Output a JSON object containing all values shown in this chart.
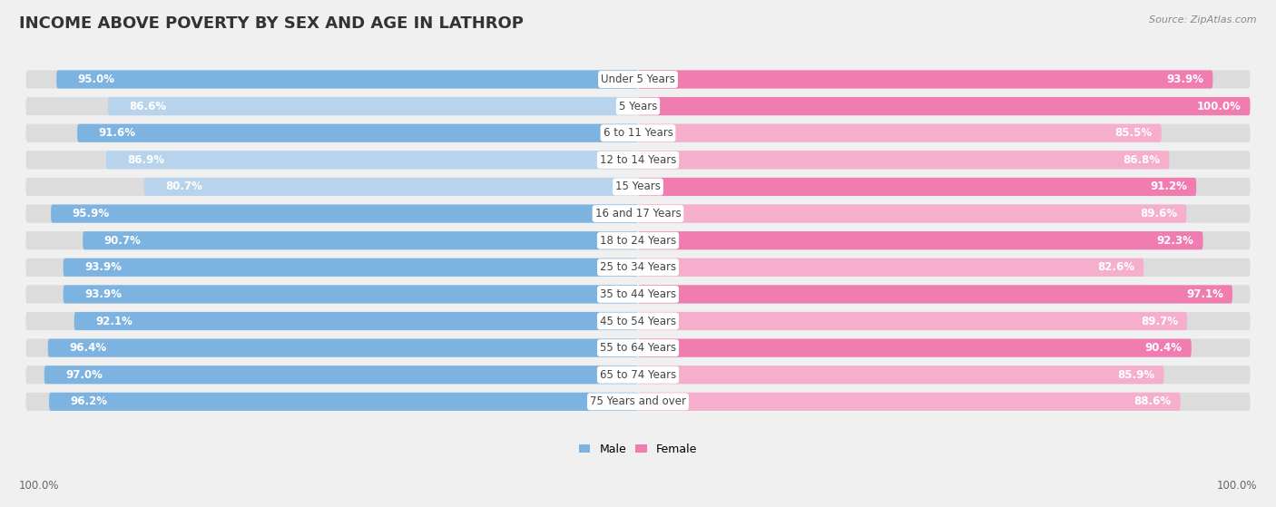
{
  "title": "INCOME ABOVE POVERTY BY SEX AND AGE IN LATHROP",
  "source": "Source: ZipAtlas.com",
  "categories": [
    "Under 5 Years",
    "5 Years",
    "6 to 11 Years",
    "12 to 14 Years",
    "15 Years",
    "16 and 17 Years",
    "18 to 24 Years",
    "25 to 34 Years",
    "35 to 44 Years",
    "45 to 54 Years",
    "55 to 64 Years",
    "65 to 74 Years",
    "75 Years and over"
  ],
  "male_values": [
    95.0,
    86.6,
    91.6,
    86.9,
    80.7,
    95.9,
    90.7,
    93.9,
    93.9,
    92.1,
    96.4,
    97.0,
    96.2
  ],
  "female_values": [
    93.9,
    100.0,
    85.5,
    86.8,
    91.2,
    89.6,
    92.3,
    82.6,
    97.1,
    89.7,
    90.4,
    85.9,
    88.6
  ],
  "male_color": "#7db3e0",
  "male_color_light": "#b8d4ed",
  "female_color": "#f07cb0",
  "female_color_light": "#f5aecb",
  "bg_color": "#f0f0f0",
  "bar_bg_color": "#dcdcdc",
  "title_fontsize": 13,
  "label_fontsize": 8.5,
  "value_fontsize": 8.5,
  "legend_fontsize": 9,
  "source_fontsize": 8,
  "x_max": 100.0,
  "footer_male": "100.0%",
  "footer_female": "100.0%"
}
